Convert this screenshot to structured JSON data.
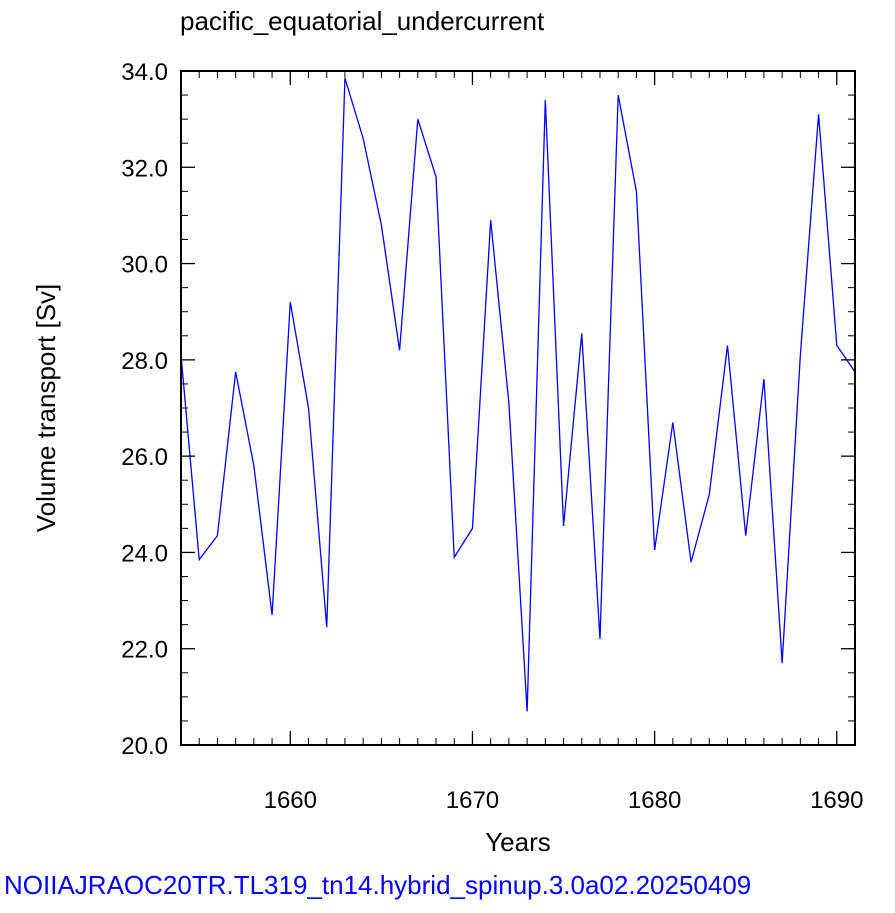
{
  "footer": {
    "text": "NOIIAJRAOC20TR.TL319_tn14.hybrid_spinup.3.0a02.20250409"
  },
  "chart_data": {
    "type": "line",
    "title": "pacific_equatorial_undercurrent",
    "xlabel": "Years",
    "ylabel": "Volume transport [Sv]",
    "xlim": [
      1654,
      1691
    ],
    "ylim": [
      20.0,
      34.0
    ],
    "x_ticks": [
      1660,
      1670,
      1680,
      1690
    ],
    "x_tick_labels": [
      "1660",
      "1670",
      "1680",
      "1690"
    ],
    "y_ticks": [
      20,
      22,
      24,
      26,
      28,
      30,
      32,
      34
    ],
    "y_tick_labels": [
      "20.0",
      "22.0",
      "24.0",
      "26.0",
      "28.0",
      "30.0",
      "32.0",
      "34.0"
    ],
    "line_color": "#0000ff",
    "series": [
      {
        "x": [
          1654,
          1655,
          1656,
          1657,
          1658,
          1659,
          1660,
          1661,
          1662,
          1663,
          1664,
          1665,
          1666,
          1667,
          1668,
          1669,
          1670,
          1671,
          1672,
          1673,
          1674,
          1675,
          1676,
          1677,
          1678,
          1679,
          1680,
          1681,
          1682,
          1683,
          1684,
          1685,
          1686,
          1687,
          1688,
          1689,
          1690,
          1691
        ],
        "values": [
          28.1,
          23.85,
          24.35,
          27.75,
          25.8,
          22.7,
          29.2,
          27.0,
          22.45,
          33.85,
          32.6,
          30.8,
          28.2,
          33.0,
          31.8,
          23.9,
          24.5,
          30.9,
          27.1,
          20.7,
          33.4,
          24.55,
          28.55,
          22.2,
          33.5,
          31.5,
          24.05,
          26.7,
          23.8,
          25.2,
          28.3,
          24.35,
          27.6,
          21.7,
          28.1,
          33.1,
          28.3,
          27.75
        ]
      }
    ]
  }
}
